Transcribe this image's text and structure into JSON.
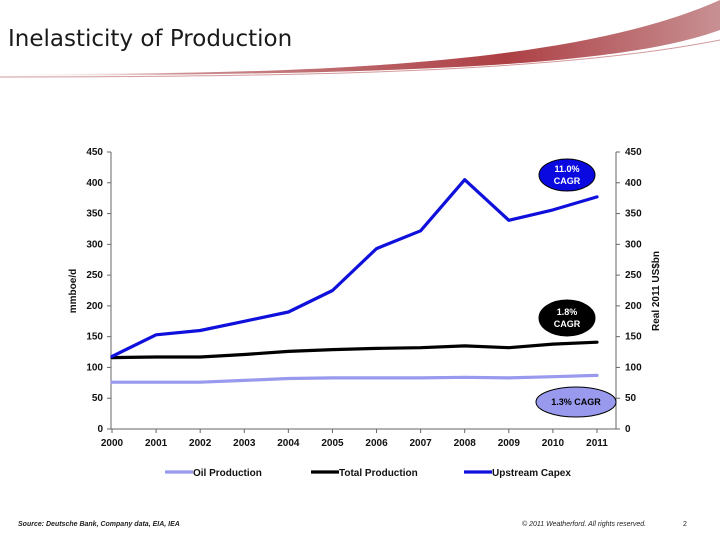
{
  "slide": {
    "title": "Inelasticity of Production",
    "source": "Source: Deutsche Bank, Company data, EIA, IEA",
    "copyright": "© 2011 Weatherford. All rights reserved.",
    "page_number": "2"
  },
  "colors": {
    "oil": "#9999ee",
    "total": "#000000",
    "capex": "#1010dd",
    "swoosh": "#a8353a"
  },
  "chart_data": {
    "type": "line",
    "x": [
      2000,
      2001,
      2002,
      2003,
      2004,
      2005,
      2006,
      2007,
      2008,
      2009,
      2010,
      2011
    ],
    "ylabel": "mmboe/d",
    "y2label": "Real 2011 US$bn",
    "ylim": [
      0,
      450
    ],
    "y2lim": [
      0,
      450
    ],
    "yticks": [
      0,
      50,
      100,
      150,
      200,
      250,
      300,
      350,
      400,
      450
    ],
    "legend_position": "bottom",
    "series": [
      {
        "name": "Oil Production",
        "axis": "left",
        "color": "#9999ee",
        "values": [
          76,
          76,
          76,
          79,
          82,
          83,
          83,
          83,
          84,
          83,
          85,
          87
        ]
      },
      {
        "name": "Total Production",
        "axis": "left",
        "color": "#000000",
        "values": [
          116,
          117,
          117,
          121,
          126,
          129,
          131,
          132,
          135,
          132,
          138,
          141
        ]
      },
      {
        "name": "Upstream Capex",
        "axis": "right",
        "color": "#1010dd",
        "values": [
          118,
          153,
          160,
          175,
          190,
          225,
          293,
          322,
          405,
          339,
          356,
          377
        ]
      }
    ],
    "annotations": [
      {
        "text_lines": [
          "11.0%",
          "CAGR"
        ],
        "series": "Upstream Capex",
        "fill": "#0a0ae0",
        "text_color": "#ffffff"
      },
      {
        "text_lines": [
          "1.8%",
          "CAGR"
        ],
        "series": "Total Production",
        "fill": "#000000",
        "text_color": "#ffffff"
      },
      {
        "text_lines": [
          "1.3% CAGR"
        ],
        "series": "Oil Production",
        "fill": "#9999ee",
        "text_color": "#000000"
      }
    ]
  }
}
